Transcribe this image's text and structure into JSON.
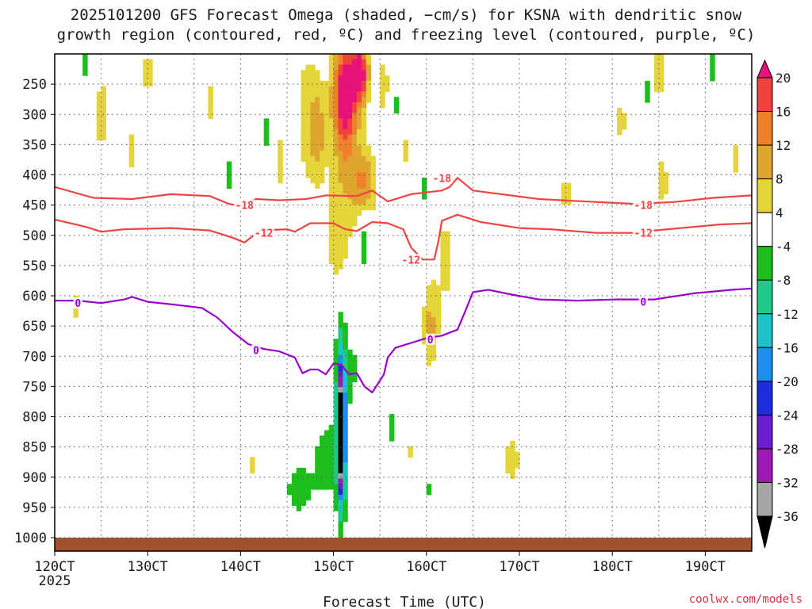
{
  "title": {
    "line1": "2025101200 GFS Forecast Omega (shaded, −cm/s) for KSNA with dendritic snow",
    "line2": "growth region (contoured, red, ºC) and freezing level (contoured, purple, ºC)"
  },
  "xlabel": "Forecast Time (UTC)",
  "credit": "coolwx.com/models",
  "colors": {
    "grid": "#555555",
    "ground": "#a0522d",
    "dgz_contour": "#ee4444",
    "freezing_contour": "#9900cc"
  },
  "chart_data": {
    "type": "heatmap",
    "title": "2025101200 GFS Forecast Omega (shaded, −cm/s) for KSNA with dendritic snow growth region (contoured, red, ºC) and freezing level (contoured, purple, ºC)",
    "xlabel": "Forecast Time (UTC)",
    "ylabel": "",
    "x_ticks": [
      "120CT",
      "130CT",
      "140CT",
      "150CT",
      "160CT",
      "170CT",
      "180CT",
      "190CT"
    ],
    "x_sublabel": "2025",
    "y_ticks": [
      250,
      300,
      350,
      400,
      450,
      500,
      550,
      600,
      650,
      700,
      750,
      800,
      850,
      900,
      950,
      1000
    ],
    "xlim_hours": [
      0,
      180
    ],
    "ylim_hpa": [
      200,
      1000
    ],
    "colorbar": {
      "labels": [
        "20",
        "16",
        "12",
        "8",
        "4",
        "-4",
        "-8",
        "-12",
        "-16",
        "-20",
        "-24",
        "-28",
        "-32",
        "-36"
      ],
      "bins": [
        {
          "color": "#e8117a"
        },
        {
          "color": "#f0433c"
        },
        {
          "color": "#f0812a"
        },
        {
          "color": "#e0a52e"
        },
        {
          "color": "#e6d53a"
        },
        {
          "color": "#ffffff"
        },
        {
          "color": "#1cbf1c"
        },
        {
          "color": "#1ec98a"
        },
        {
          "color": "#1cc4c9"
        },
        {
          "color": "#1c8ef0"
        },
        {
          "color": "#1c2ee0"
        },
        {
          "color": "#6a1cd0"
        },
        {
          "color": "#a018b8"
        },
        {
          "color": "#a6a6a6"
        },
        {
          "color": "#000000"
        }
      ]
    },
    "omega_blobs": [
      {
        "t": 75,
        "p": 330,
        "rt": 4,
        "rp": 150,
        "v": 10
      },
      {
        "t": 75,
        "p": 260,
        "rt": 3,
        "rp": 80,
        "v": 18
      },
      {
        "t": 73,
        "p": 520,
        "rt": 2.5,
        "rp": 80,
        "v": 6
      },
      {
        "t": 80,
        "p": 420,
        "rt": 3,
        "rp": 60,
        "v": 12
      },
      {
        "t": 79,
        "p": 230,
        "rt": 2,
        "rp": 50,
        "v": 21
      },
      {
        "t": 65,
        "p": 300,
        "rt": 3,
        "rp": 130,
        "v": 6
      },
      {
        "t": 68,
        "p": 330,
        "rt": 2,
        "rp": 80,
        "v": 9
      },
      {
        "t": 58,
        "p": 380,
        "rt": 2,
        "rp": 80,
        "v": 5
      },
      {
        "t": 85,
        "p": 250,
        "rt": 2,
        "rp": 80,
        "v": 5
      },
      {
        "t": 12,
        "p": 300,
        "rt": 3,
        "rp": 100,
        "v": 5
      },
      {
        "t": 24,
        "p": 230,
        "rt": 2,
        "rp": 60,
        "v": 5
      },
      {
        "t": 20,
        "p": 360,
        "rt": 2,
        "rp": 60,
        "v": 5
      },
      {
        "t": 5,
        "p": 620,
        "rt": 1.5,
        "rp": 50,
        "v": 5
      },
      {
        "t": 40,
        "p": 280,
        "rt": 2,
        "rp": 60,
        "v": 5
      },
      {
        "t": 101,
        "p": 540,
        "rt": 3,
        "rp": 110,
        "v": 5
      },
      {
        "t": 97,
        "p": 650,
        "rt": 2,
        "rp": 70,
        "v": 9
      },
      {
        "t": 118,
        "p": 870,
        "rt": 1.8,
        "rp": 40,
        "v": 8
      },
      {
        "t": 146,
        "p": 310,
        "rt": 3,
        "rp": 50,
        "v": 5
      },
      {
        "t": 157,
        "p": 410,
        "rt": 2,
        "rp": 70,
        "v": 5
      },
      {
        "t": 156,
        "p": 230,
        "rt": 1.5,
        "rp": 40,
        "v": 9
      },
      {
        "t": 176,
        "p": 370,
        "rt": 2,
        "rp": 50,
        "v": 5
      },
      {
        "t": 132,
        "p": 430,
        "rt": 2,
        "rp": 40,
        "v": 5
      },
      {
        "t": 90,
        "p": 360,
        "rt": 1.5,
        "rp": 60,
        "v": 5
      },
      {
        "t": 92,
        "p": 860,
        "rt": 1,
        "rp": 25,
        "v": 5
      },
      {
        "t": 51,
        "p": 880,
        "rt": 1,
        "rp": 30,
        "v": 5
      },
      {
        "t": 77,
        "p": 720,
        "rt": 1.2,
        "rp": 60,
        "v": -5
      },
      {
        "t": 74,
        "p": 790,
        "rt": 1.8,
        "rp": 160,
        "v": -10
      },
      {
        "t": 74,
        "p": 820,
        "rt": 1.1,
        "rp": 130,
        "v": -18
      },
      {
        "t": 74,
        "p": 830,
        "rt": 0.7,
        "rp": 80,
        "v": -32
      },
      {
        "t": 70,
        "p": 870,
        "rt": 3.5,
        "rp": 70,
        "v": -6
      },
      {
        "t": 63,
        "p": 920,
        "rt": 4,
        "rp": 50,
        "v": -6
      },
      {
        "t": 55,
        "p": 330,
        "rt": 1.5,
        "rp": 70,
        "v": -5
      },
      {
        "t": 60,
        "p": 690,
        "rt": 0.8,
        "rp": 40,
        "v": -5
      },
      {
        "t": 87,
        "p": 820,
        "rt": 1,
        "rp": 50,
        "v": -5
      },
      {
        "t": 95,
        "p": 420,
        "rt": 1.2,
        "rp": 60,
        "v": -5
      },
      {
        "t": 88,
        "p": 290,
        "rt": 1.2,
        "rp": 70,
        "v": -5
      },
      {
        "t": 97,
        "p": 920,
        "rt": 1.2,
        "rp": 35,
        "v": -5
      },
      {
        "t": 80,
        "p": 500,
        "rt": 1.5,
        "rp": 60,
        "v": -8
      },
      {
        "t": 8,
        "p": 220,
        "rt": 1.5,
        "rp": 60,
        "v": -5
      },
      {
        "t": 143,
        "p": 300,
        "rt": 1.5,
        "rp": 50,
        "v": -5
      },
      {
        "t": 170,
        "p": 210,
        "rt": 1.5,
        "rp": 70,
        "v": -5
      },
      {
        "t": 153,
        "p": 260,
        "rt": 0.8,
        "rp": 40,
        "v": -5
      },
      {
        "t": 45,
        "p": 400,
        "rt": 1,
        "rp": 50,
        "v": -5
      },
      {
        "t": 35,
        "p": 630,
        "rt": 0.6,
        "rp": 40,
        "v": -5
      }
    ],
    "contours": [
      {
        "name": "dgz-minus18",
        "label": "-18",
        "kind": "dgz",
        "label_points": [
          [
            49,
            450
          ],
          [
            100,
            405
          ],
          [
            152,
            450
          ]
        ],
        "points": [
          [
            0,
            420
          ],
          [
            10,
            438
          ],
          [
            20,
            440
          ],
          [
            30,
            432
          ],
          [
            40,
            435
          ],
          [
            45,
            448
          ],
          [
            48,
            452
          ],
          [
            52,
            440
          ],
          [
            58,
            442
          ],
          [
            65,
            440
          ],
          [
            70,
            434
          ],
          [
            78,
            435
          ],
          [
            82,
            426
          ],
          [
            86,
            444
          ],
          [
            92,
            432
          ],
          [
            100,
            426
          ],
          [
            102,
            420
          ],
          [
            104,
            405
          ],
          [
            108,
            426
          ],
          [
            125,
            440
          ],
          [
            140,
            445
          ],
          [
            150,
            448
          ],
          [
            160,
            445
          ],
          [
            170,
            438
          ],
          [
            180,
            434
          ]
        ]
      },
      {
        "name": "dgz-minus12",
        "label": "-12",
        "kind": "dgz",
        "label_points": [
          [
            54,
            496
          ],
          [
            92,
            540
          ],
          [
            152,
            496
          ]
        ],
        "points": [
          [
            0,
            474
          ],
          [
            8,
            486
          ],
          [
            12,
            494
          ],
          [
            18,
            490
          ],
          [
            30,
            488
          ],
          [
            40,
            492
          ],
          [
            46,
            504
          ],
          [
            49,
            512
          ],
          [
            53,
            492
          ],
          [
            60,
            490
          ],
          [
            62,
            494
          ],
          [
            66,
            480
          ],
          [
            72,
            480
          ],
          [
            75,
            490
          ],
          [
            78,
            493
          ],
          [
            82,
            478
          ],
          [
            86,
            480
          ],
          [
            90,
            490
          ],
          [
            92,
            520
          ],
          [
            95,
            540
          ],
          [
            98,
            540
          ],
          [
            99,
            512
          ],
          [
            100,
            476
          ],
          [
            104,
            466
          ],
          [
            110,
            478
          ],
          [
            120,
            488
          ],
          [
            128,
            490
          ],
          [
            140,
            496
          ],
          [
            150,
            496
          ],
          [
            155,
            492
          ],
          [
            165,
            486
          ],
          [
            172,
            482
          ],
          [
            180,
            480
          ]
        ]
      },
      {
        "name": "freezing-0",
        "label": "0",
        "kind": "frz",
        "label_points": [
          [
            6,
            612
          ],
          [
            52,
            690
          ],
          [
            97,
            672
          ],
          [
            152,
            610
          ]
        ],
        "points": [
          [
            0,
            608
          ],
          [
            6,
            608
          ],
          [
            12,
            612
          ],
          [
            18,
            606
          ],
          [
            20,
            602
          ],
          [
            24,
            610
          ],
          [
            30,
            614
          ],
          [
            38,
            620
          ],
          [
            42,
            636
          ],
          [
            46,
            660
          ],
          [
            50,
            680
          ],
          [
            54,
            688
          ],
          [
            58,
            692
          ],
          [
            62,
            702
          ],
          [
            64,
            728
          ],
          [
            66,
            722
          ],
          [
            68,
            722
          ],
          [
            70,
            730
          ],
          [
            72,
            712
          ],
          [
            74,
            714
          ],
          [
            76,
            730
          ],
          [
            78,
            728
          ],
          [
            80,
            750
          ],
          [
            82,
            760
          ],
          [
            84,
            740
          ],
          [
            85,
            730
          ],
          [
            86,
            702
          ],
          [
            88,
            686
          ],
          [
            92,
            678
          ],
          [
            96,
            670
          ],
          [
            100,
            666
          ],
          [
            104,
            656
          ],
          [
            106,
            626
          ],
          [
            108,
            594
          ],
          [
            112,
            590
          ],
          [
            118,
            598
          ],
          [
            125,
            606
          ],
          [
            135,
            608
          ],
          [
            145,
            606
          ],
          [
            155,
            606
          ],
          [
            165,
            596
          ],
          [
            175,
            590
          ],
          [
            180,
            588
          ]
        ]
      }
    ]
  }
}
